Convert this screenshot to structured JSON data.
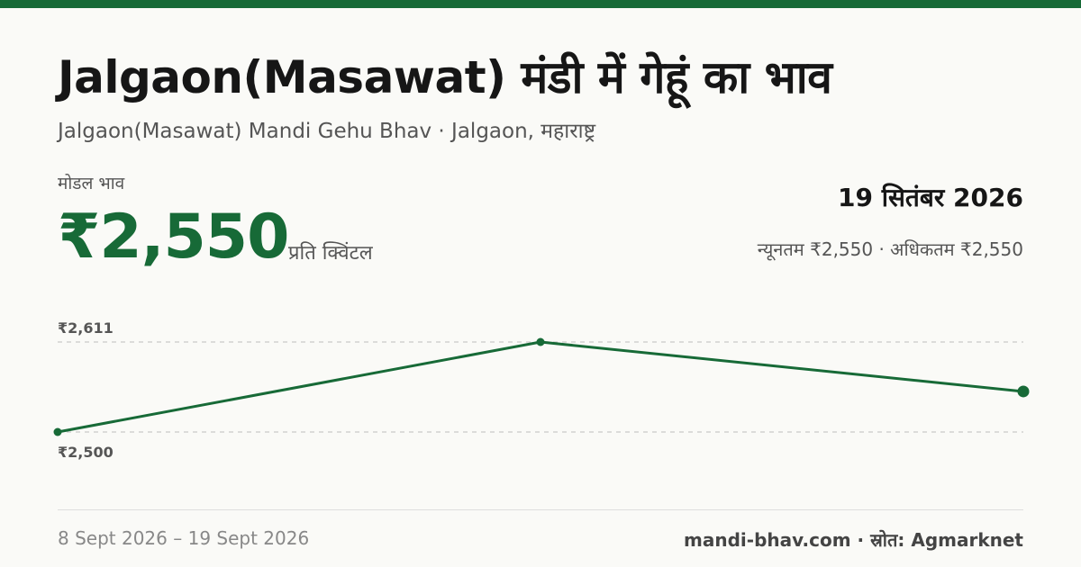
{
  "header": {
    "title": "Jalgaon(Masawat) मंडी में गेहूं का भाव",
    "subtitle": "Jalgaon(Masawat) Mandi Gehu Bhav · Jalgaon, महाराष्ट्र"
  },
  "price": {
    "label": "मोडल भाव",
    "value": "₹2,550",
    "unit": "प्रति क्विंटल"
  },
  "summary": {
    "date": "19 सितंबर 2026",
    "range": "न्यूनतम ₹2,550 · अधिकतम ₹2,550"
  },
  "chart_data": {
    "type": "line",
    "y_tick_labels": [
      "₹2,611",
      "₹2,500"
    ],
    "ylim": [
      2500,
      2611
    ],
    "series": [
      {
        "values": [
          2500,
          2611,
          2550
        ]
      }
    ],
    "grid": true,
    "color": "#176a37"
  },
  "footer": {
    "period": "8 Sept 2026 – 19 Sept 2026",
    "source": "mandi-bhav.com · स्रोत: Agmarknet"
  }
}
